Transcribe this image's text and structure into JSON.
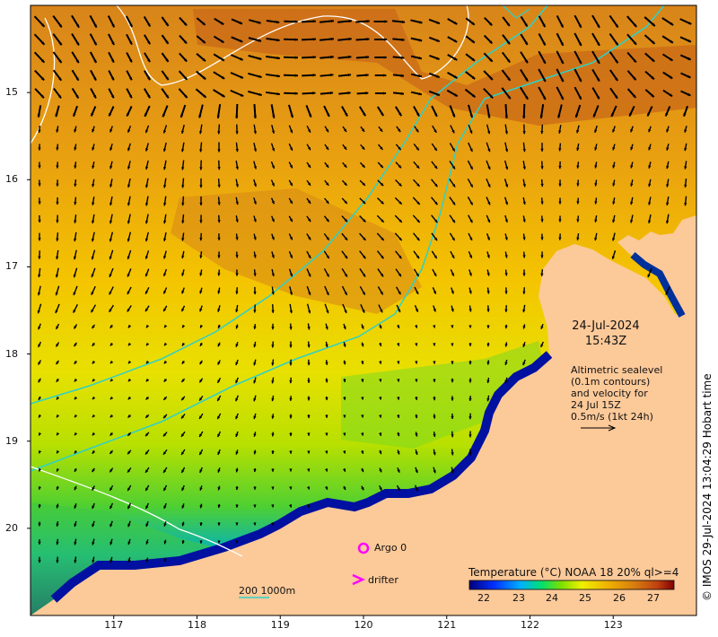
{
  "map": {
    "lat_ticks": [
      "15",
      "16",
      "17",
      "18",
      "19",
      "20"
    ],
    "lon_ticks": [
      "117",
      "118",
      "119",
      "120",
      "121",
      "122",
      "123"
    ],
    "extent": {
      "lon_min": 116.0,
      "lon_max": 124.0,
      "lat_top": -14.0,
      "lat_bottom": -21.0
    }
  },
  "annotations": {
    "date": "24-Jul-2024",
    "time": "15:43Z",
    "altimetry_lines": [
      "Altimetric sealevel",
      "(0.1m contours)",
      "and velocity for",
      "24 Jul 15Z",
      "0.5m/s (1kt 24h)"
    ],
    "credit": "© IMOS 29-Jul-2024 13:04:29 Hobart time"
  },
  "legend": {
    "title": "Temperature (°C) NOAA 18 20% ql>=4",
    "ticks": [
      "22",
      "23",
      "24",
      "25",
      "26",
      "27"
    ],
    "argo_label": "Argo 0",
    "drifter_label": "drifter",
    "isobath_label": "200  1000m"
  },
  "colors": {
    "land": "#fcc999",
    "isobath": "#2ed1c8",
    "argo": "#ff00ff",
    "contour": "#ffffff"
  }
}
